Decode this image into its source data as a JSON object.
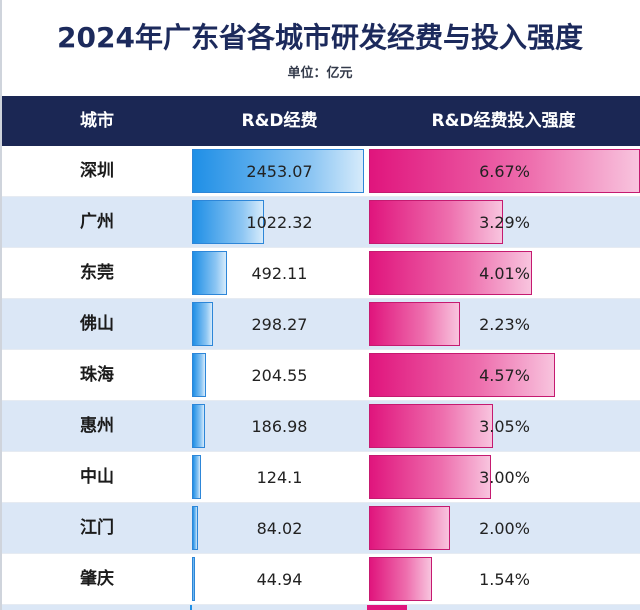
{
  "title": "2024年广东省各城市研发经费与投入强度",
  "unit_label": "单位：亿元",
  "colors": {
    "header_bg": "#1b2754",
    "rd_bar": "#1f8fe6",
    "intensity_bar": "#e0157d",
    "row_alt": "#dbe7f6"
  },
  "chart_data": {
    "type": "table",
    "columns": [
      "城市",
      "R&D经费",
      "R&D经费投入强度"
    ],
    "rows": [
      {
        "city": "深圳",
        "rd": "2453.07",
        "intensity": "6.67%"
      },
      {
        "city": "广州",
        "rd": "1022.32",
        "intensity": "3.29%"
      },
      {
        "city": "东莞",
        "rd": "492.11",
        "intensity": "4.01%"
      },
      {
        "city": "佛山",
        "rd": "298.27",
        "intensity": "2.23%"
      },
      {
        "city": "珠海",
        "rd": "204.55",
        "intensity": "4.57%"
      },
      {
        "city": "惠州",
        "rd": "186.98",
        "intensity": "3.05%"
      },
      {
        "city": "中山",
        "rd": "124.1",
        "intensity": "3.00%"
      },
      {
        "city": "江门",
        "rd": "84.02",
        "intensity": "2.00%"
      },
      {
        "city": "肇庆",
        "rd": "44.94",
        "intensity": "1.54%"
      }
    ],
    "rd_max": 2453.07,
    "intensity_max": 6.67
  }
}
